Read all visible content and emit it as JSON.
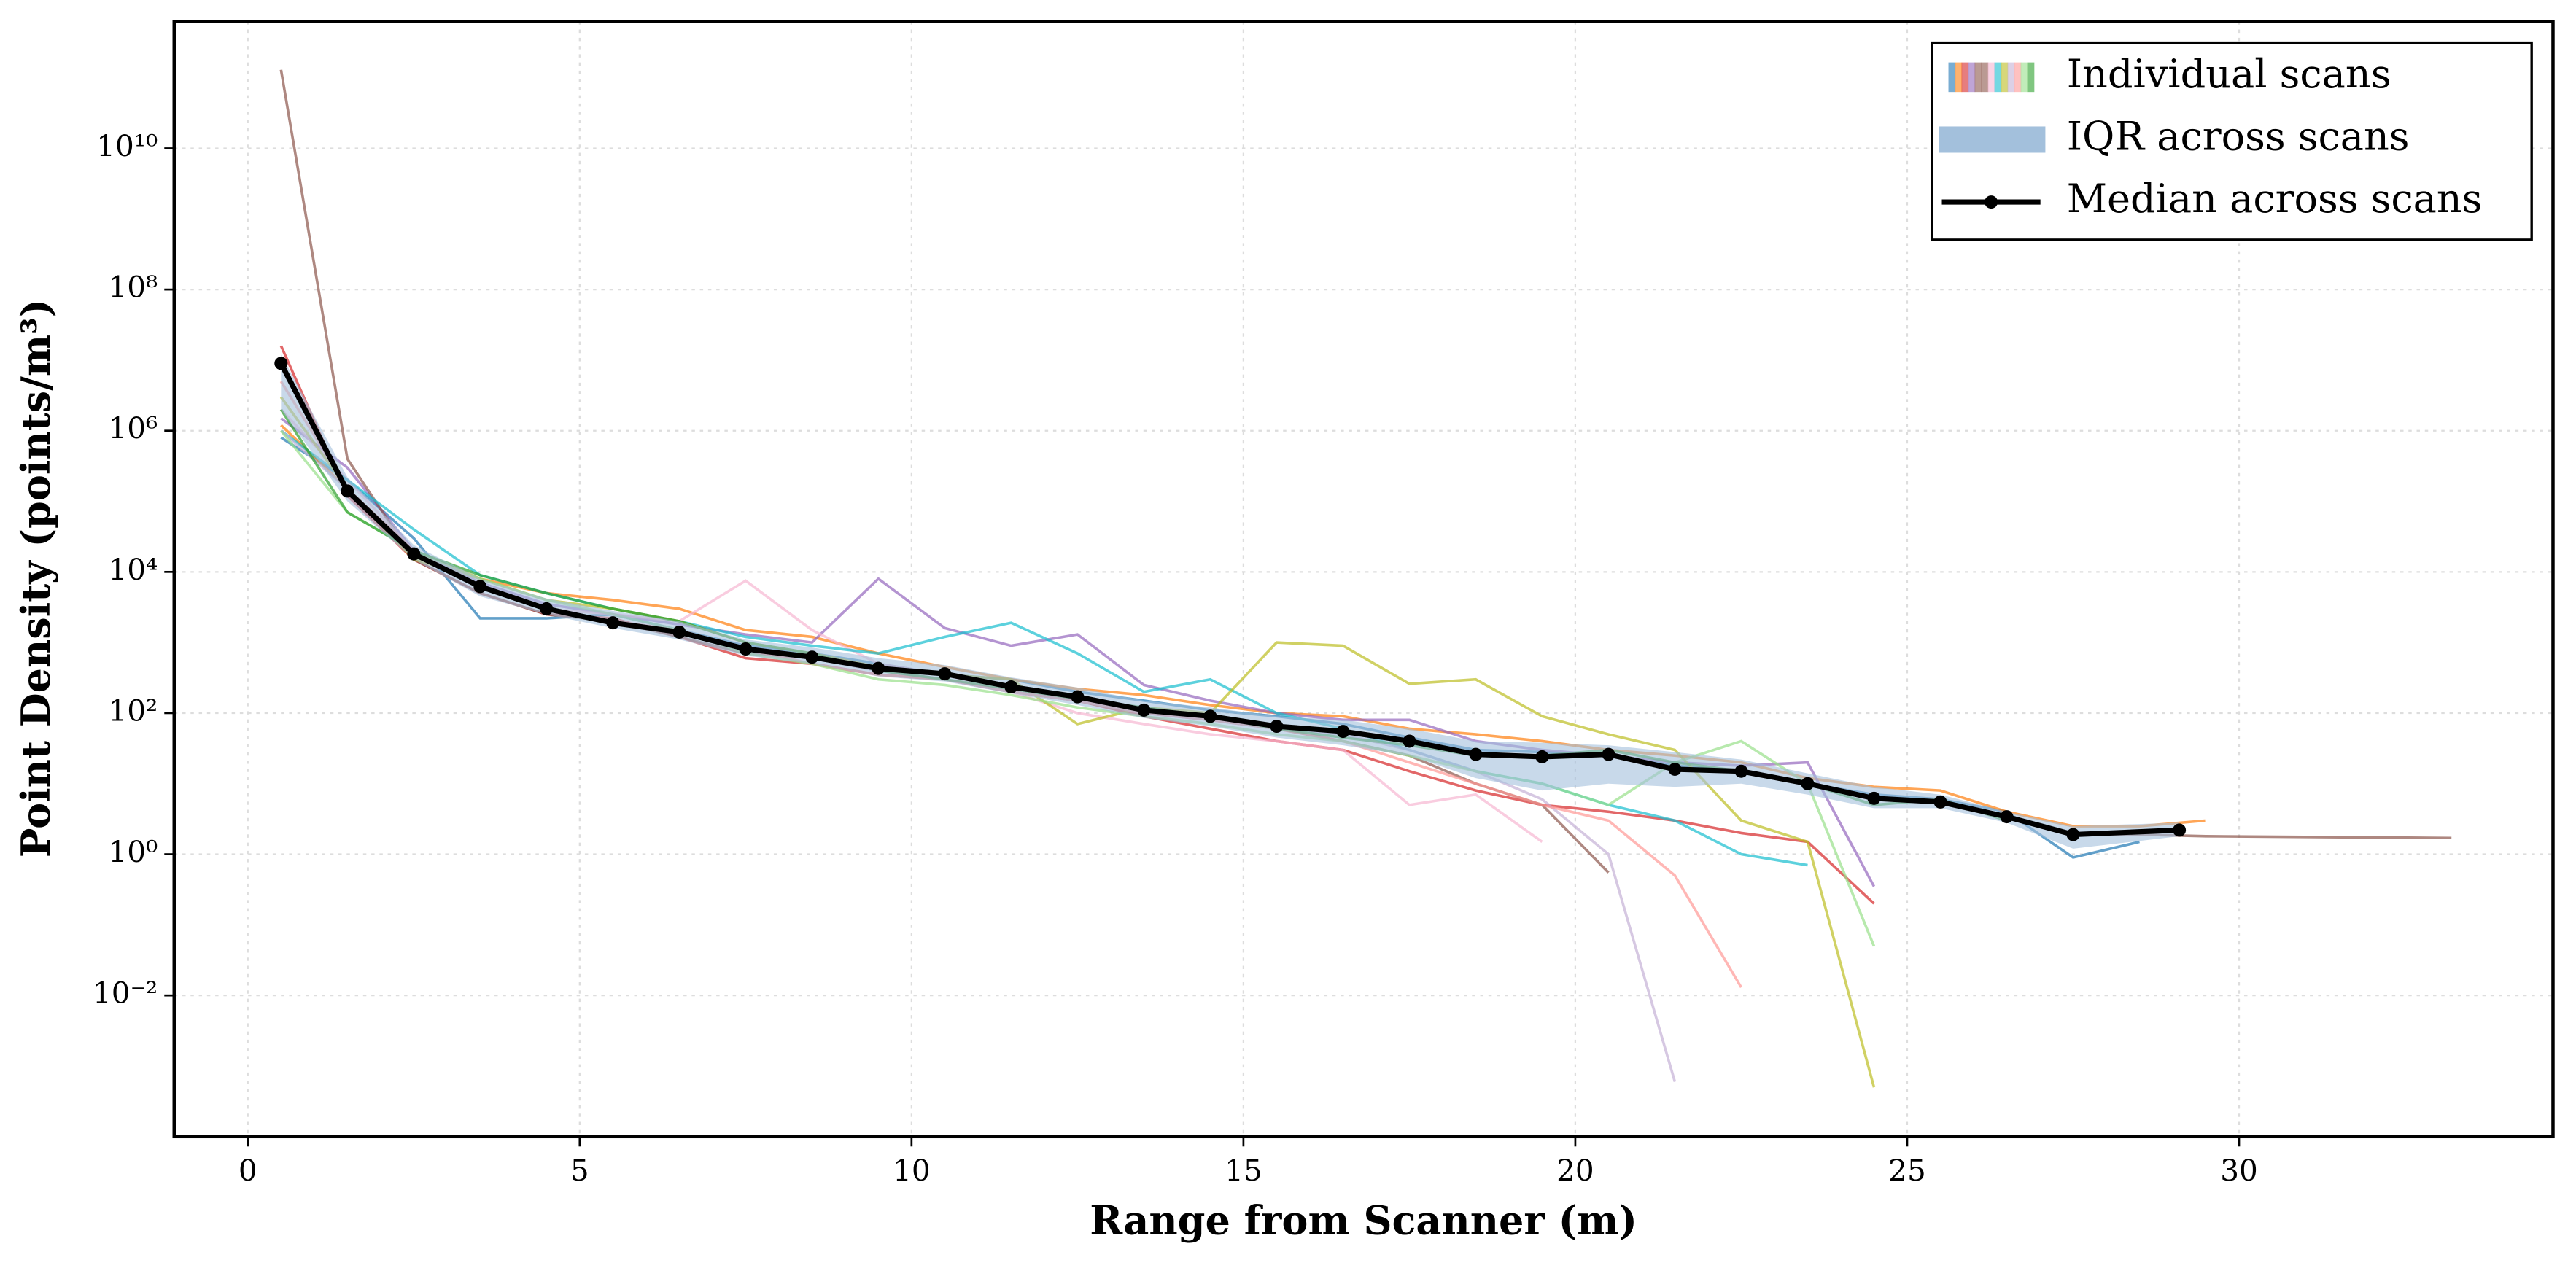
{
  "chart_data": {
    "type": "line",
    "xlabel": "Range from Scanner (m)",
    "ylabel": "Point Density (points/m³)",
    "log_y": true,
    "grid": true,
    "legend": "upper right",
    "xlim": [
      -1.11,
      34.73
    ],
    "ylim": [
      0.0001,
      630000000000
    ],
    "xticks": [
      0,
      5,
      10,
      15,
      20,
      25,
      30
    ],
    "yticks": [
      {
        "value": 0.01,
        "label": "10⁻²"
      },
      {
        "value": 1,
        "label": "10⁰"
      },
      {
        "value": 100,
        "label": "10²"
      },
      {
        "value": 10000,
        "label": "10⁴"
      },
      {
        "value": 1000000,
        "label": "10⁶"
      },
      {
        "value": 100000000,
        "label": "10⁸"
      },
      {
        "value": 10000000000,
        "label": "10¹⁰"
      }
    ],
    "scans": {
      "label": "Individual scans",
      "series": [
        {
          "color": "#1f77b4",
          "x": [
            0.5,
            1.5,
            2.5,
            3.5,
            4.5,
            5.5,
            6.5,
            7.5,
            8.5,
            9.5,
            10.5,
            11.5,
            12.5,
            13.5,
            14.5,
            15.5,
            16.5,
            17.5,
            18.5,
            19.5,
            20.5,
            21.5,
            22.5,
            23.5,
            24.5,
            25.5,
            26.5,
            27.5,
            28.5
          ],
          "values": [
            800000,
            200000,
            30000,
            2200,
            2200,
            2500,
            1500,
            900,
            700,
            500,
            350,
            300,
            200,
            150,
            110,
            90,
            70,
            45,
            30,
            28,
            25,
            18,
            15,
            10,
            7,
            6,
            4,
            0.9,
            1.5
          ]
        },
        {
          "color": "#ff7f0e",
          "x": [
            0.5,
            1.5,
            2.5,
            3.5,
            4.5,
            5.5,
            6.5,
            7.5,
            8.5,
            9.5,
            10.5,
            11.5,
            12.5,
            13.5,
            14.5,
            15.5,
            16.5,
            17.5,
            18.5,
            19.5,
            20.5,
            21.5,
            22.5,
            23.5,
            24.5,
            25.5,
            26.5,
            27.5,
            28.5,
            29.5
          ],
          "values": [
            1200000,
            150000,
            20000,
            8000,
            5000,
            4000,
            3000,
            1500,
            1200,
            700,
            450,
            300,
            220,
            180,
            130,
            100,
            90,
            60,
            50,
            40,
            30,
            25,
            20,
            12,
            9,
            8,
            4,
            2.5,
            2.5,
            3
          ]
        },
        {
          "color": "#d62728",
          "x": [
            0.5,
            1.5,
            2.5,
            3.5,
            4.5,
            5.5,
            6.5,
            7.5,
            8.5,
            9.5,
            10.5,
            11.5,
            12.5,
            13.5,
            14.5,
            15.5,
            16.5,
            17.5,
            18.5,
            19.5,
            20.5,
            21.5,
            22.5,
            23.5,
            24.5
          ],
          "values": [
            16000000,
            120000,
            15000,
            5000,
            2500,
            2200,
            1200,
            600,
            500,
            350,
            300,
            200,
            150,
            90,
            60,
            40,
            30,
            15,
            8,
            5,
            4,
            3,
            2,
            1.5,
            0.2
          ]
        },
        {
          "color": "#9467bd",
          "x": [
            0.5,
            1.5,
            2.5,
            3.5,
            4.5,
            5.5,
            6.5,
            7.5,
            8.5,
            9.5,
            10.5,
            11.5,
            12.5,
            13.5,
            14.5,
            15.5,
            16.5,
            17.5,
            18.5,
            19.5,
            20.5,
            21.5,
            22.5,
            23.5,
            24.5
          ],
          "values": [
            1500000,
            300000,
            20000,
            7000,
            3500,
            2500,
            1800,
            1300,
            1000,
            8000,
            1600,
            900,
            1300,
            250,
            150,
            100,
            80,
            80,
            40,
            30,
            25,
            20,
            18,
            20,
            0.35
          ]
        },
        {
          "color": "#8c564b",
          "x": [
            0.5,
            1.5,
            2.5,
            3.5,
            4.5,
            5.5,
            6.5,
            7.5,
            8.5,
            9.5,
            10.5,
            11.5,
            12.5,
            13.5,
            14.5,
            15.5,
            16.5,
            17.5,
            18.5,
            19.5,
            20.5
          ],
          "values": [
            130000000000,
            400000,
            15000,
            5000,
            2500,
            2000,
            1200,
            700,
            600,
            400,
            300,
            200,
            150,
            100,
            80,
            60,
            40,
            25,
            10,
            5,
            0.55
          ]
        },
        {
          "color": "#8c564b",
          "x": [
            27.5,
            28.5,
            29.5,
            33.2
          ],
          "values": [
            1.9,
            1.9,
            1.8,
            1.7
          ]
        },
        {
          "color": "#f7b6d2",
          "x": [
            0.5,
            1.5,
            2.5,
            3.5,
            4.5,
            5.5,
            6.5,
            7.5,
            8.5,
            9.5,
            10.5,
            11.5,
            12.5,
            13.5,
            14.5,
            15.5,
            16.5,
            17.5,
            18.5,
            19.5
          ],
          "values": [
            2000000,
            200000,
            20000,
            6000,
            3000,
            2500,
            2000,
            7500,
            1500,
            500,
            350,
            200,
            100,
            70,
            50,
            40,
            30,
            5,
            7,
            1.5
          ]
        },
        {
          "color": "#17becf",
          "x": [
            0.5,
            1.5,
            2.5,
            3.5,
            4.5,
            5.5,
            6.5,
            7.5,
            8.5,
            9.5,
            10.5,
            11.5,
            12.5,
            13.5,
            14.5,
            15.5,
            16.5,
            17.5,
            18.5,
            19.5,
            20.5,
            21.5,
            22.5,
            23.5
          ],
          "values": [
            1000000,
            200000,
            40000,
            9000,
            5000,
            3000,
            2000,
            1200,
            900,
            700,
            1200,
            1900,
            700,
            200,
            300,
            100,
            60,
            30,
            15,
            10,
            5,
            3,
            1,
            0.7
          ]
        },
        {
          "color": "#bcbd22",
          "x": [
            0.5,
            1.5,
            2.5,
            3.5,
            4.5,
            5.5,
            6.5,
            7.5,
            8.5,
            9.5,
            10.5,
            11.5,
            12.5,
            13.5,
            14.5,
            15.5,
            16.5,
            17.5,
            18.5,
            19.5,
            20.5,
            21.5,
            22.5,
            23.5,
            24.5
          ],
          "values": [
            3000000,
            150000,
            15000,
            8000,
            4000,
            3000,
            2000,
            1000,
            700,
            450,
            350,
            300,
            70,
            120,
            100,
            1000,
            900,
            260,
            300,
            90,
            50,
            30,
            3,
            1.5,
            0.0005
          ]
        },
        {
          "color": "#c5b0d5",
          "x": [
            0.5,
            1.5,
            2.5,
            3.5,
            4.5,
            5.5,
            6.5,
            7.5,
            8.5,
            9.5,
            10.5,
            11.5,
            12.5,
            13.5,
            14.5,
            15.5,
            16.5,
            17.5,
            18.5,
            19.5,
            20.5,
            21.5
          ],
          "values": [
            1000000,
            150000,
            20000,
            7000,
            3000,
            2000,
            1500,
            800,
            600,
            400,
            300,
            200,
            150,
            100,
            80,
            60,
            50,
            30,
            15,
            6,
            1,
            0.0006
          ]
        },
        {
          "color": "#ff9896",
          "x": [
            0.5,
            1.5,
            2.5,
            3.5,
            4.5,
            5.5,
            6.5,
            7.5,
            8.5,
            9.5,
            10.5,
            11.5,
            12.5,
            13.5,
            14.5,
            15.5,
            16.5,
            17.5,
            18.5,
            19.5,
            20.5,
            21.5,
            22.5
          ],
          "values": [
            5000000,
            150000,
            20000,
            6000,
            3000,
            2000,
            1500,
            800,
            500,
            350,
            300,
            200,
            150,
            100,
            80,
            60,
            40,
            20,
            10,
            5,
            3,
            0.5,
            0.013
          ]
        },
        {
          "color": "#98df8a",
          "x": [
            0.5,
            1.5,
            2.5,
            3.5,
            4.5,
            5.5,
            6.5,
            7.5,
            8.5,
            9.5,
            10.5,
            11.5,
            12.5,
            13.5,
            14.5,
            15.5,
            16.5,
            17.5,
            18.5,
            19.5,
            20.5,
            21.5,
            22.5,
            23.5,
            24.5
          ],
          "values": [
            1000000,
            70000,
            20000,
            8000,
            4000,
            2500,
            1500,
            700,
            500,
            300,
            250,
            180,
            120,
            90,
            70,
            50,
            40,
            25,
            15,
            10,
            5,
            20,
            40,
            10,
            0.05
          ]
        },
        {
          "color": "#2ca02c",
          "x": [
            0.5,
            1.5,
            2.5,
            3.5,
            4.5,
            5.5,
            6.5,
            7.5,
            8.5,
            9.5,
            10.5,
            11.5,
            12.5,
            13.5,
            14.5,
            15.5,
            16.5,
            17.5,
            18.5,
            19.5,
            20.5,
            21.5,
            22.5,
            23.5,
            24.5,
            25.5,
            26.5
          ],
          "values": [
            2000000,
            70000,
            20000,
            9000,
            5000,
            3000,
            2000,
            1000,
            700,
            400,
            300,
            220,
            160,
            120,
            90,
            60,
            45,
            35,
            25,
            25,
            30,
            20,
            15,
            10,
            5,
            6,
            3
          ]
        }
      ]
    },
    "iqr": {
      "label": "IQR across scans",
      "color": "#a3c0dc",
      "x": [
        0.5,
        1.5,
        2.5,
        3.5,
        4.5,
        5.5,
        6.5,
        7.5,
        8.5,
        9.5,
        10.5,
        11.5,
        12.5,
        13.5,
        14.5,
        15.5,
        16.5,
        17.5,
        18.5,
        19.5,
        20.5,
        21.5,
        22.5,
        23.5,
        24.5,
        25.5,
        26.5,
        27.5,
        29.1
      ],
      "low": [
        2000000,
        100000,
        15000,
        4500,
        2500,
        1600,
        1100,
        650,
        500,
        330,
        280,
        190,
        130,
        85,
        65,
        45,
        35,
        25,
        12,
        8,
        10,
        9,
        10,
        7,
        4.5,
        4.5,
        2.8,
        1.2,
        1.8
      ],
      "high": [
        12000000,
        220000,
        24000,
        8000,
        4200,
        2800,
        2000,
        1100,
        850,
        600,
        480,
        320,
        230,
        150,
        120,
        90,
        80,
        60,
        40,
        38,
        35,
        28,
        22,
        14,
        9,
        7,
        4,
        2.5,
        2.8
      ]
    },
    "median": {
      "label": "Median across scans",
      "color": "#000000",
      "x": [
        0.5,
        1.5,
        2.5,
        3.5,
        4.5,
        5.5,
        6.5,
        7.5,
        8.5,
        9.5,
        10.5,
        11.5,
        12.5,
        13.5,
        14.5,
        15.5,
        16.5,
        17.5,
        18.5,
        19.5,
        20.5,
        21.5,
        22.5,
        23.5,
        24.5,
        25.5,
        26.5,
        27.5,
        29.1
      ],
      "values": [
        9000000,
        140000,
        18000,
        6200,
        3000,
        1900,
        1400,
        810,
        620,
        430,
        360,
        235,
        170,
        110,
        90,
        65,
        55,
        40,
        26,
        24,
        26,
        16,
        15,
        10,
        6.2,
        5.5,
        3.4,
        1.9,
        2.2
      ]
    }
  }
}
